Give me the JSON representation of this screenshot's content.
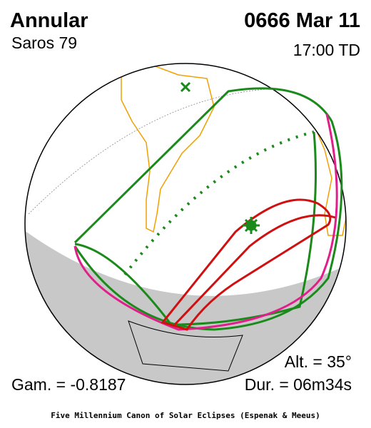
{
  "header": {
    "title": "Annular",
    "saros": "Saros  79",
    "date": "0666 Mar 11",
    "time": "17:00 TD"
  },
  "stats": {
    "altitude": "Alt. = 35°",
    "gamma": "Gam. = -0.8187",
    "duration": "Dur. = 06m34s"
  },
  "footer": "Five Millennium Canon of Solar Eclipses (Espenak & Meeus)"
}
